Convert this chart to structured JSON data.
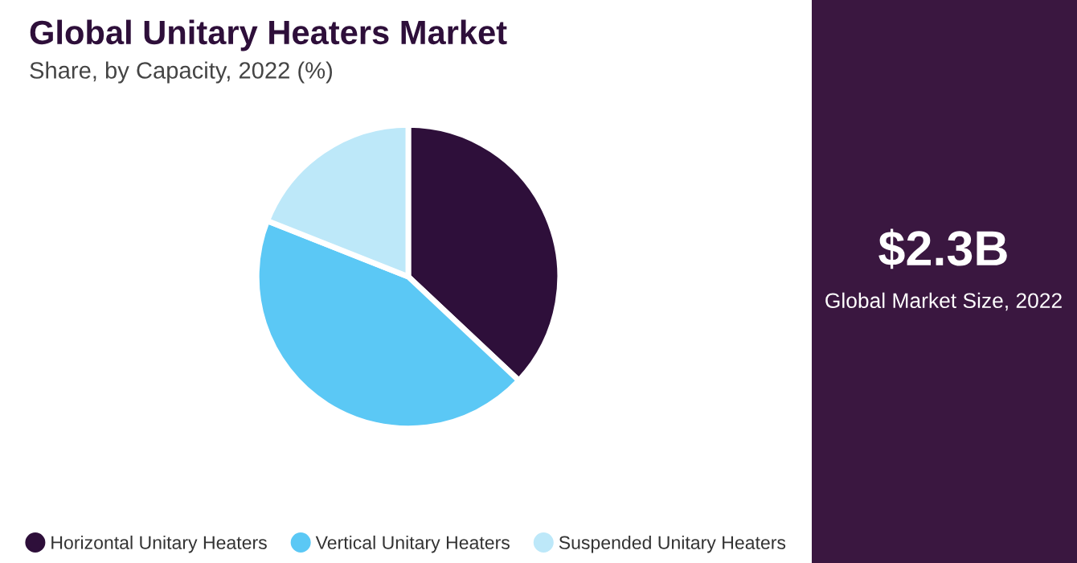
{
  "chart_data": {
    "type": "pie",
    "title": "Global Unitary Heaters Market",
    "subtitle": "Share, by Capacity, 2022 (%)",
    "categories": [
      "Horizontal Unitary Heaters",
      "Vertical Unitary Heaters",
      "Suspended Unitary Heaters"
    ],
    "values": [
      37,
      44,
      19
    ],
    "colors": [
      "#2e0f3a",
      "#5bc8f5",
      "#bde8f9"
    ],
    "annotations": [
      "$2.3B",
      "Global Market Size, 2022"
    ],
    "legend": "bottom"
  }
}
